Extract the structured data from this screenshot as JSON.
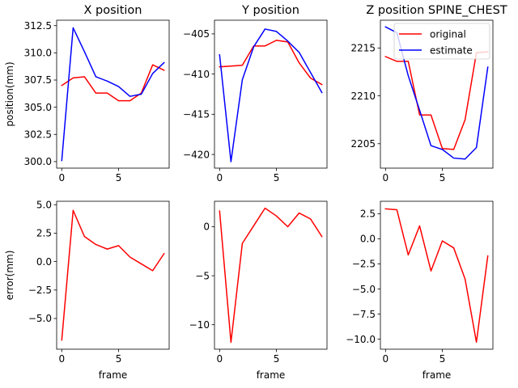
{
  "colors": {
    "original": "#ff0000",
    "estimate": "#0000ff"
  },
  "chart_data": [
    {
      "type": "line",
      "id": "x-position",
      "title": "X position",
      "xlabel": "",
      "ylabel": "position(mm)",
      "xlim": [
        -0.45,
        9.45
      ],
      "ylim": [
        299.4,
        313.0
      ],
      "xticks": [
        0,
        5
      ],
      "yticks": [
        300.0,
        302.5,
        305.0,
        307.5,
        310.0,
        312.5
      ],
      "ytick_labels": [
        "300.0",
        "302.5",
        "305.0",
        "307.5",
        "310.0",
        "312.5"
      ],
      "x": [
        0,
        1,
        2,
        3,
        4,
        5,
        6,
        7,
        8,
        9
      ],
      "series": [
        {
          "name": "original",
          "color": "#ff0000",
          "values": [
            307.0,
            307.7,
            307.8,
            306.3,
            306.3,
            305.6,
            305.6,
            306.3,
            308.9,
            308.4
          ]
        },
        {
          "name": "estimate",
          "color": "#0000ff",
          "values": [
            300.1,
            312.3,
            310.1,
            307.8,
            307.4,
            306.9,
            306.0,
            306.2,
            308.1,
            309.1
          ]
        }
      ]
    },
    {
      "type": "line",
      "id": "y-position",
      "title": "Y position",
      "xlabel": "",
      "ylabel": "",
      "xlim": [
        -0.45,
        9.45
      ],
      "ylim": [
        -421.7,
        -403.3
      ],
      "xticks": [
        0,
        5
      ],
      "yticks": [
        -420,
        -415,
        -410,
        -405
      ],
      "ytick_labels": [
        "−420",
        "−415",
        "−410",
        "−405"
      ],
      "x": [
        0,
        1,
        2,
        3,
        4,
        5,
        6,
        7,
        8,
        9
      ],
      "series": [
        {
          "name": "original",
          "color": "#ff0000",
          "values": [
            -409.1,
            -409.0,
            -408.9,
            -406.5,
            -406.5,
            -405.8,
            -406.0,
            -408.6,
            -410.5,
            -411.3
          ]
        },
        {
          "name": "estimate",
          "color": "#0000ff",
          "values": [
            -407.6,
            -420.9,
            -410.7,
            -406.6,
            -404.4,
            -404.7,
            -405.9,
            -407.3,
            -409.8,
            -412.3
          ]
        }
      ]
    },
    {
      "type": "line",
      "id": "z-position",
      "title": "Z position SPINE_CHEST",
      "xlabel": "",
      "ylabel": "",
      "xlim": [
        -0.45,
        9.45
      ],
      "ylim": [
        2202.45,
        2217.9
      ],
      "xticks": [
        0,
        5
      ],
      "yticks": [
        2205,
        2210,
        2215
      ],
      "ytick_labels": [
        "2205",
        "2210",
        "2215"
      ],
      "x": [
        0,
        1,
        2,
        3,
        4,
        5,
        6,
        7,
        8,
        9
      ],
      "series": [
        {
          "name": "original",
          "color": "#ff0000",
          "values": [
            2214.1,
            2213.6,
            2213.6,
            2208.0,
            2208.0,
            2204.5,
            2204.4,
            2207.5,
            2214.5,
            2214.6
          ]
        },
        {
          "name": "estimate",
          "color": "#0000ff",
          "values": [
            2217.2,
            2216.6,
            2212.1,
            2208.5,
            2204.8,
            2204.4,
            2203.5,
            2203.4,
            2204.6,
            2213.0
          ]
        }
      ],
      "legend": {
        "placement": "top-right",
        "entries": [
          "original",
          "estimate"
        ]
      }
    },
    {
      "type": "line",
      "id": "x-error",
      "title": "",
      "xlabel": "frame",
      "ylabel": "error(mm)",
      "xlim": [
        -0.45,
        9.45
      ],
      "ylim": [
        -7.7,
        5.3
      ],
      "xticks": [
        0,
        5
      ],
      "yticks": [
        -5.0,
        -2.5,
        0.0,
        2.5,
        5.0
      ],
      "ytick_labels": [
        "−5.0",
        "−2.5",
        "0.0",
        "2.5",
        "5.0"
      ],
      "x": [
        0,
        1,
        2,
        3,
        4,
        5,
        6,
        7,
        8,
        9
      ],
      "series": [
        {
          "name": "error",
          "color": "#ff0000",
          "values": [
            -6.9,
            4.5,
            2.2,
            1.5,
            1.1,
            1.4,
            0.4,
            -0.2,
            -0.8,
            0.7
          ]
        }
      ]
    },
    {
      "type": "line",
      "id": "y-error",
      "title": "",
      "xlabel": "frame",
      "ylabel": "",
      "xlim": [
        -0.45,
        9.45
      ],
      "ylim": [
        -12.5,
        2.6
      ],
      "xticks": [
        0,
        5
      ],
      "yticks": [
        -10,
        -5,
        0
      ],
      "ytick_labels": [
        "−10",
        "−5",
        "0"
      ],
      "x": [
        0,
        1,
        2,
        3,
        4,
        5,
        6,
        7,
        8,
        9
      ],
      "series": [
        {
          "name": "error",
          "color": "#ff0000",
          "values": [
            1.6,
            -11.8,
            -1.7,
            0.1,
            1.9,
            1.1,
            0.0,
            1.4,
            0.8,
            -1.0
          ]
        }
      ]
    },
    {
      "type": "line",
      "id": "z-error",
      "title": "",
      "xlabel": "frame",
      "ylabel": "",
      "xlim": [
        -0.45,
        9.45
      ],
      "ylim": [
        -11.0,
        3.75
      ],
      "xticks": [
        0,
        5
      ],
      "yticks": [
        -10.0,
        -7.5,
        -5.0,
        -2.5,
        0.0,
        2.5
      ],
      "ytick_labels": [
        "−10.0",
        "−7.5",
        "−5.0",
        "−2.5",
        "0.0",
        "2.5"
      ],
      "x": [
        0,
        1,
        2,
        3,
        4,
        5,
        6,
        7,
        8,
        9
      ],
      "series": [
        {
          "name": "error",
          "color": "#ff0000",
          "values": [
            3.0,
            2.9,
            -1.6,
            1.3,
            -3.2,
            -0.2,
            -0.9,
            -4.0,
            -10.3,
            -1.7
          ]
        }
      ]
    }
  ]
}
